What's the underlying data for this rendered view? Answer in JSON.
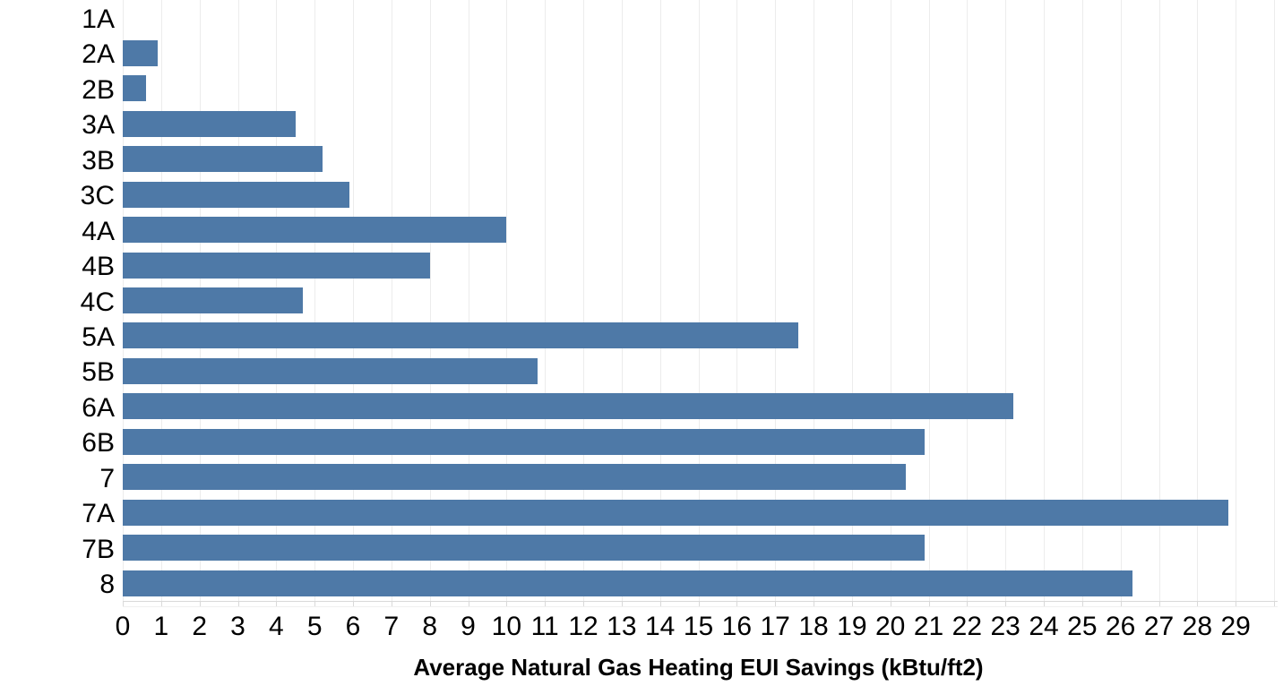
{
  "chart_data": {
    "type": "bar",
    "orientation": "horizontal",
    "title": "",
    "xlabel": "Average Natural Gas Heating EUI Savings (kBtu/ft2)",
    "ylabel": "",
    "categories": [
      "1A",
      "2A",
      "2B",
      "3A",
      "3B",
      "3C",
      "4A",
      "4B",
      "4C",
      "5A",
      "5B",
      "6A",
      "6B",
      "7",
      "7A",
      "7B",
      "8"
    ],
    "values": [
      0,
      0.9,
      0.6,
      4.5,
      5.2,
      5.9,
      10.0,
      8.0,
      4.7,
      17.6,
      10.8,
      23.2,
      20.9,
      20.4,
      28.8,
      20.9,
      26.3
    ],
    "xlim": [
      0,
      30
    ],
    "x_tick_step": 1,
    "x_tick_labels": [
      "0",
      "1",
      "2",
      "3",
      "4",
      "5",
      "6",
      "7",
      "8",
      "9",
      "10",
      "11",
      "12",
      "13",
      "14",
      "15",
      "16",
      "17",
      "18",
      "19",
      "20",
      "21",
      "22",
      "23",
      "24",
      "25",
      "26",
      "27",
      "28",
      "29"
    ],
    "grid": "vertical-on",
    "legend": "none",
    "colors": {
      "bar": "#4e79a7",
      "gridline": "#ececec",
      "axis_line": "#d9d9d9",
      "text": "#000000",
      "background": "#ffffff"
    }
  }
}
